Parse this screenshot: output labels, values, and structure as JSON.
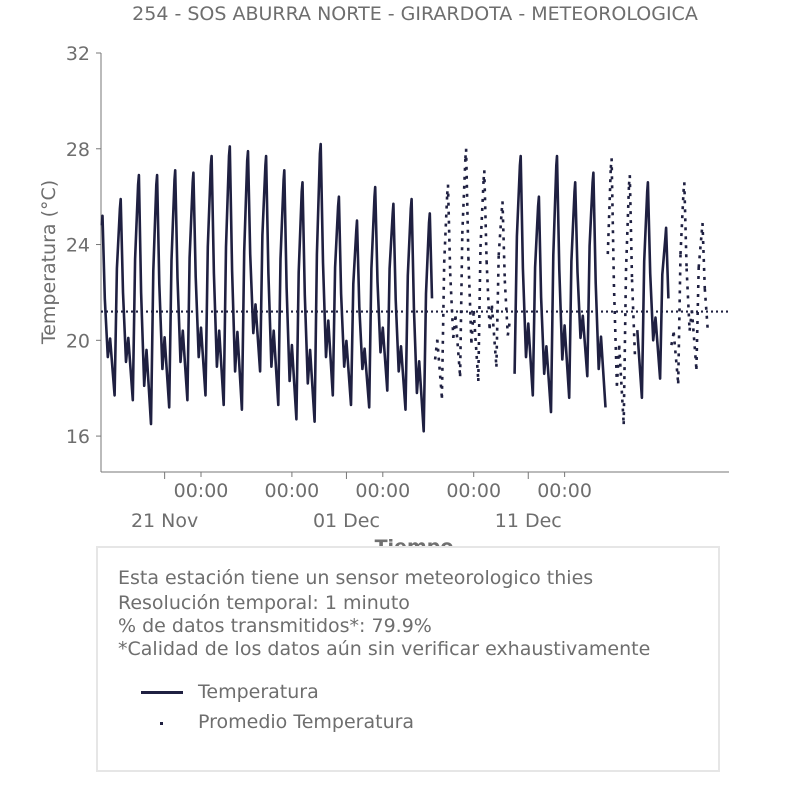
{
  "chart_data": {
    "type": "line",
    "title": "254 - SOS ABURRA NORTE - GIRARDOTA - METEOROLOGICA",
    "xlabel": "Tiempo",
    "ylabel": "Temperatura (°C)",
    "ylim": [
      14.5,
      32
    ],
    "yticks": [
      "16",
      "20",
      "24",
      "28",
      "32"
    ],
    "xlim": [
      "2023-11-17T12:00",
      "2023-12-22T01:00"
    ],
    "xticks_major": [
      {
        "t": "2023-11-21T00:00",
        "label": "21 Nov"
      },
      {
        "t": "2023-12-01T00:00",
        "label": "01 Dec"
      },
      {
        "t": "2023-12-11T00:00",
        "label": "11 Dec"
      }
    ],
    "xticks_minor": [
      {
        "t": "2023-11-23T00:00",
        "label": "00:00"
      },
      {
        "t": "2023-11-28T00:00",
        "label": "00:00"
      },
      {
        "t": "2023-12-03T00:00",
        "label": "00:00"
      },
      {
        "t": "2023-12-08T00:00",
        "label": "00:00"
      },
      {
        "t": "2023-12-13T00:00",
        "label": "00:00"
      }
    ],
    "series": [
      {
        "name": "Temperatura",
        "style": "solid",
        "color": "#1f2041",
        "daily_extremes": [
          {
            "day": "2023-11-17",
            "max": 25.2,
            "min": 18.0
          },
          {
            "day": "2023-11-18",
            "max": 25.9,
            "min": 17.7
          },
          {
            "day": "2023-11-19",
            "max": 26.9,
            "min": 17.5
          },
          {
            "day": "2023-11-20",
            "max": 26.9,
            "min": 16.5
          },
          {
            "day": "2023-11-21",
            "max": 27.1,
            "min": 17.2
          },
          {
            "day": "2023-11-22",
            "max": 27.0,
            "min": 17.5
          },
          {
            "day": "2023-11-23",
            "max": 27.7,
            "min": 17.7
          },
          {
            "day": "2023-11-24",
            "max": 28.1,
            "min": 17.3
          },
          {
            "day": "2023-11-25",
            "max": 27.9,
            "min": 17.1
          },
          {
            "day": "2023-11-26",
            "max": 27.7,
            "min": 18.7
          },
          {
            "day": "2023-11-27",
            "max": 27.1,
            "min": 17.3
          },
          {
            "day": "2023-11-28",
            "max": 26.6,
            "min": 16.7
          },
          {
            "day": "2023-11-29",
            "max": 28.2,
            "min": 16.6
          },
          {
            "day": "2023-11-30",
            "max": 26.0,
            "min": 17.7
          },
          {
            "day": "2023-12-01",
            "max": 25.0,
            "min": 17.3
          },
          {
            "day": "2023-12-02",
            "max": 26.4,
            "min": 17.2
          },
          {
            "day": "2023-12-03",
            "max": 25.7,
            "min": 17.9
          },
          {
            "day": "2023-12-04",
            "max": 25.9,
            "min": 17.1
          },
          {
            "day": "2023-12-05",
            "max": 25.3,
            "min": 16.2
          },
          {
            "day": "2023-12-06",
            "max": 26.5,
            "min": 17.6
          },
          {
            "day": "2023-12-07",
            "max": 28.0,
            "min": 18.5
          },
          {
            "day": "2023-12-08",
            "max": 27.1,
            "min": 18.3
          },
          {
            "day": "2023-12-09",
            "max": 25.8,
            "min": 18.9
          },
          {
            "day": "2023-12-10",
            "max": 27.7,
            "min": 18.6
          },
          {
            "day": "2023-12-11",
            "max": 26.0,
            "min": 17.7
          },
          {
            "day": "2023-12-12",
            "max": 27.7,
            "min": 17.0
          },
          {
            "day": "2023-12-13",
            "max": 26.6,
            "min": 17.6
          },
          {
            "day": "2023-12-14",
            "max": 27.0,
            "min": 18.5
          },
          {
            "day": "2023-12-15",
            "max": 27.6,
            "min": 17.2
          },
          {
            "day": "2023-12-16",
            "max": 26.9,
            "min": 16.5
          },
          {
            "day": "2023-12-17",
            "max": 26.6,
            "min": 17.6
          },
          {
            "day": "2023-12-18",
            "max": 24.7,
            "min": 18.4
          },
          {
            "day": "2023-12-19",
            "max": 26.6,
            "min": 18.2
          },
          {
            "day": "2023-12-20",
            "max": 24.9,
            "min": 18.8
          }
        ],
        "data_gaps": [
          [
            "2023-12-05T18:00",
            "2023-12-10T06:00"
          ],
          [
            "2023-12-15T06:00",
            "2023-12-17T00:00"
          ],
          [
            "2023-12-18T18:00",
            "2023-12-21T00:00"
          ]
        ]
      },
      {
        "name": "Promedio Temperatura",
        "style": "dotted",
        "color": "#1f2041",
        "value": 21.2
      }
    ],
    "grid": false,
    "legend_position": "below"
  },
  "info": {
    "lines": [
      "Esta estación tiene un sensor meteorologico thies",
      "Resolución temporal: 1 minuto",
      "% de datos transmitidos*: 79.9%",
      "*Calidad de los datos aún sin verificar exhaustivamente"
    ]
  },
  "legend": {
    "items": [
      "Temperatura",
      "Promedio Temperatura"
    ]
  }
}
